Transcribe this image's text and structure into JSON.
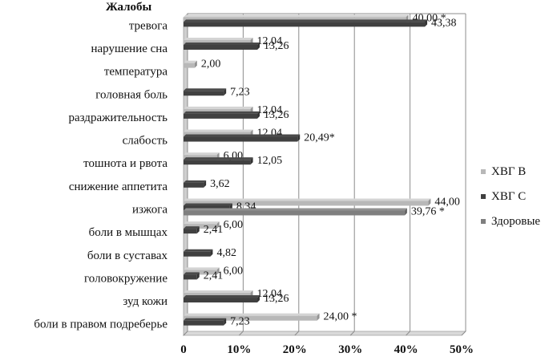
{
  "chart_data": {
    "type": "bar",
    "orientation": "horizontal",
    "title": "",
    "ylabel": "Жалобы",
    "xlabel": "",
    "xlim": [
      0,
      50
    ],
    "x_ticks": [
      "0",
      "10%",
      "20%",
      "30%",
      "40%",
      "50%"
    ],
    "grid": true,
    "legend_position": "right",
    "categories": [
      "тревога",
      "нарушение сна",
      "температура",
      "головная боль",
      "раздражительность",
      "слабость",
      "тошнота и рвота",
      "снижение аппетита",
      "изжога",
      "боли в мышцах ",
      "боли в суставах",
      "головокружение",
      "зуд кожи",
      "боли в правом подреберье"
    ],
    "series": [
      {
        "name": "ХВГ В",
        "color": "#b8b8b8",
        "values": [
          40.0,
          12.04,
          2.0,
          null,
          12.04,
          12.04,
          6.0,
          null,
          44.0,
          6.0,
          null,
          6.0,
          12.04,
          24.0
        ],
        "labels": [
          "40,00  *",
          "12,04",
          "2,00",
          "",
          "12,04",
          "12,04",
          "6,00",
          "",
          "44,00",
          "6,00",
          "",
          "6,00",
          "12,04",
          "24,00 *"
        ]
      },
      {
        "name": "ХВГ С",
        "color": "#404040",
        "values": [
          43.38,
          13.26,
          null,
          7.23,
          13.26,
          20.49,
          12.05,
          3.62,
          8.34,
          2.41,
          4.82,
          2.41,
          13.26,
          7.23
        ],
        "labels": [
          "43,38",
          "13,26",
          "",
          "7,23",
          "13,26",
          "20,49*",
          "12,05",
          "3,62",
          "8,34",
          "2,41",
          "4,82",
          "2,41",
          "13,26",
          "7,23"
        ]
      },
      {
        "name": "Здоровые",
        "color": "#7f7f7f",
        "values": [
          null,
          null,
          null,
          null,
          null,
          null,
          null,
          null,
          39.76,
          null,
          null,
          null,
          null,
          null
        ],
        "labels": [
          "",
          "",
          "",
          "",
          "",
          "",
          "",
          "",
          "39,76  *",
          "",
          "",
          "",
          "",
          ""
        ]
      }
    ]
  }
}
